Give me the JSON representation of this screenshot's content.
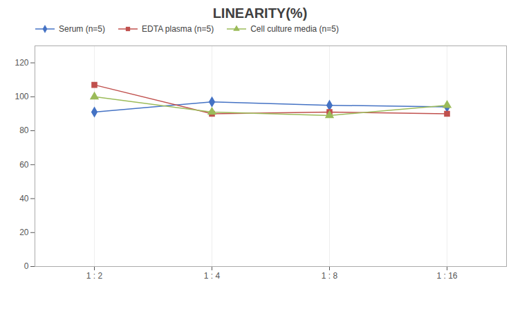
{
  "chart_data": {
    "type": "line",
    "title": "LINEARITY(%)",
    "categories": [
      "1 : 2",
      "1 : 4",
      "1 : 8",
      "1 : 16"
    ],
    "series": [
      {
        "name": "Serum (n=5)",
        "color": "#4472C4",
        "marker": "diamond",
        "values": [
          91,
          97,
          95,
          94
        ]
      },
      {
        "name": "EDTA plasma (n=5)",
        "color": "#C0504D",
        "marker": "square",
        "values": [
          107,
          90,
          91,
          90
        ]
      },
      {
        "name": "Cell culture media (n=5)",
        "color": "#9BBB59",
        "marker": "triangle",
        "values": [
          100,
          91,
          89,
          95
        ]
      }
    ],
    "ylim": [
      0,
      130
    ],
    "yticks": [
      0,
      20,
      40,
      60,
      80,
      100,
      120
    ],
    "grid": "x",
    "legend": "top"
  }
}
